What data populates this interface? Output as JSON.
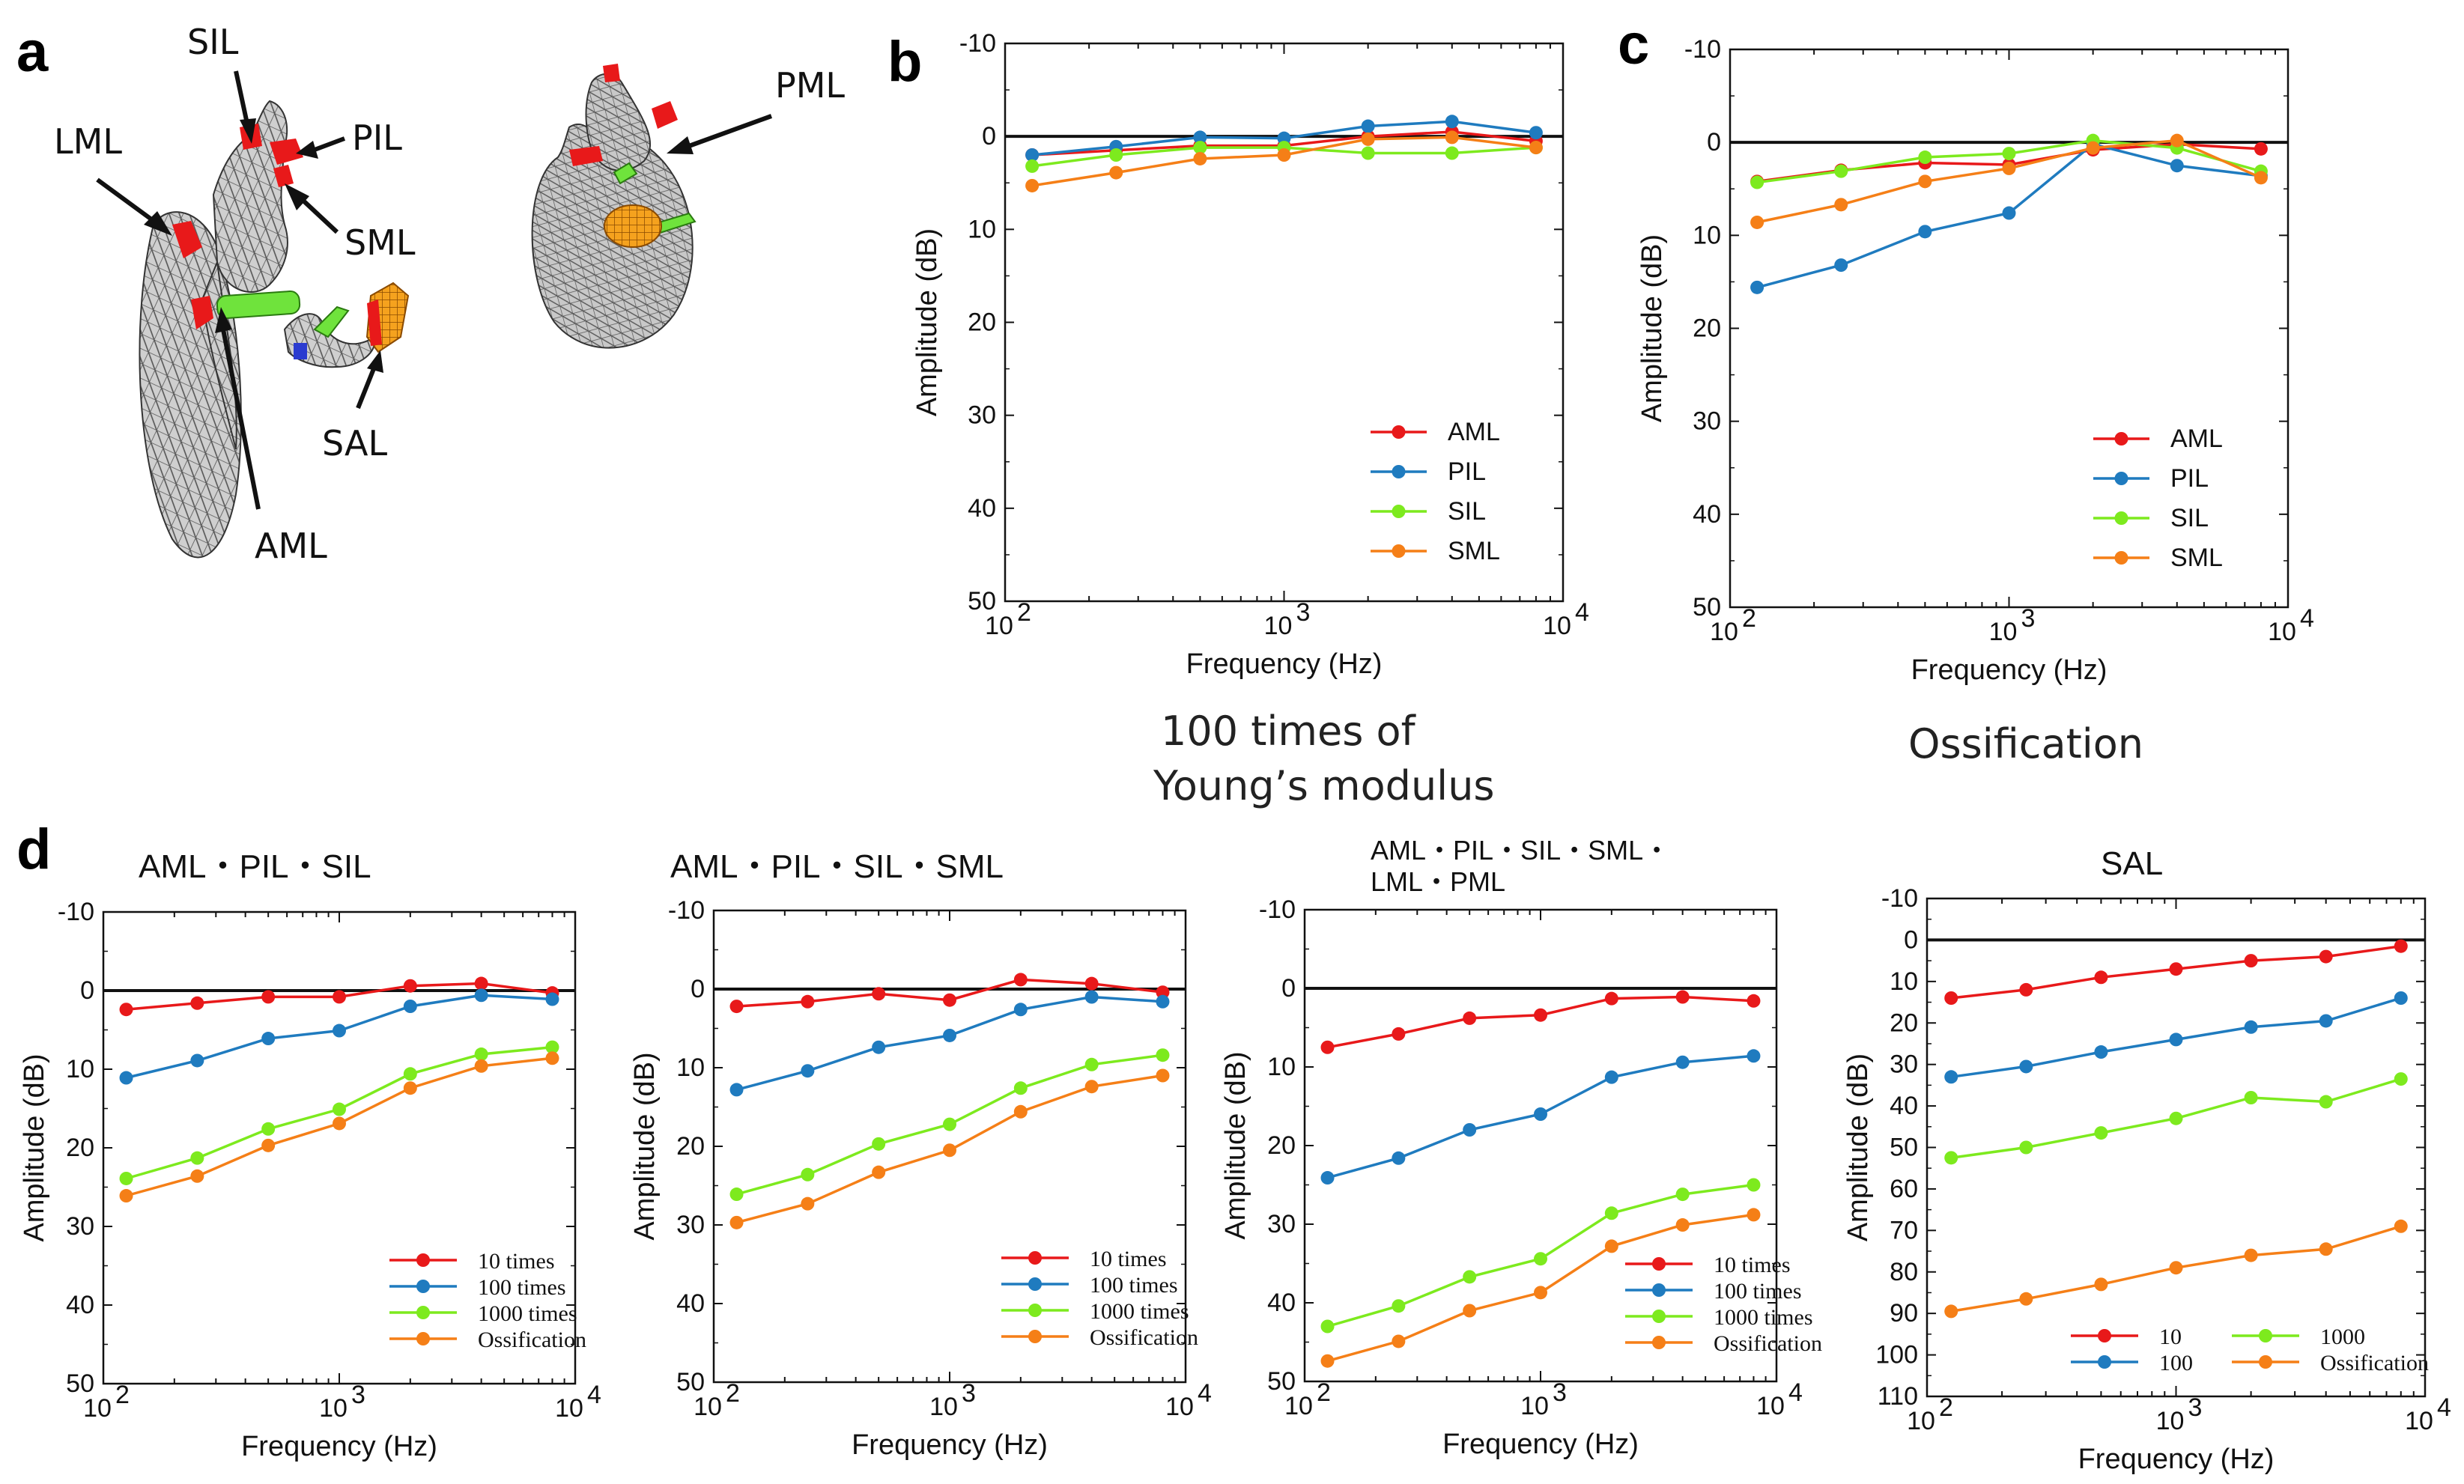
{
  "panel_letters": {
    "a": "a",
    "b": "b",
    "c": "c",
    "d": "d"
  },
  "callouts": {
    "sil": "SIL",
    "pil": "PIL",
    "lml": "LML",
    "sml": "SML",
    "sal": "SAL",
    "aml": "AML",
    "pml": "PML"
  },
  "captions": {
    "young_line1": "100 times of",
    "young_line2": "Young’s modulus",
    "ossification": "Ossification"
  },
  "colors": {
    "red": "#e8191a",
    "blue": "#1f7bbf",
    "green": "#7dea1e",
    "orange": "#f57f17",
    "mesh": "#cfcfcf"
  },
  "axis_text": {
    "xlabel": "Frequency (Hz)",
    "ylabel": "Amplitude (dB)",
    "xticks": [
      "10",
      "2",
      "10",
      "3",
      "10",
      "4"
    ]
  },
  "chart_data": [
    {
      "id": "b",
      "type": "line",
      "title": "",
      "xlabel": "Frequency (Hz)",
      "ylabel": "Amplitude (dB)",
      "xscale": "log",
      "xlim": [
        100,
        10000
      ],
      "ylim": [
        -10,
        50
      ],
      "yinverted": true,
      "yticks": [
        "-10",
        "0",
        "10",
        "20",
        "30",
        "40",
        "50"
      ],
      "x": [
        125,
        250,
        500,
        1000,
        2000,
        4000,
        8000
      ],
      "legend_position": "bottom-right",
      "series": [
        {
          "name": "AML",
          "color": "#e8191a",
          "values": [
            2,
            1.5,
            1,
            1,
            0,
            -0.5,
            0.5
          ]
        },
        {
          "name": "PIL",
          "color": "#1f7bbf",
          "values": [
            2,
            1.1,
            0.1,
            0.2,
            -1.1,
            -1.6,
            -0.4
          ]
        },
        {
          "name": "SIL",
          "color": "#7dea1e",
          "values": [
            3.2,
            2,
            1.2,
            1.2,
            1.8,
            1.8,
            1.2
          ]
        },
        {
          "name": "SML",
          "color": "#f57f17",
          "values": [
            5.3,
            3.9,
            2.4,
            2.0,
            0.3,
            0.1,
            1.2
          ]
        }
      ]
    },
    {
      "id": "c",
      "type": "line",
      "title": "",
      "xlabel": "Frequency (Hz)",
      "ylabel": "Amplitude (dB)",
      "xscale": "log",
      "xlim": [
        100,
        10000
      ],
      "ylim": [
        -10,
        50
      ],
      "yinverted": true,
      "yticks": [
        "-10",
        "0",
        "10",
        "20",
        "30",
        "40",
        "50"
      ],
      "x": [
        125,
        250,
        500,
        1000,
        2000,
        4000,
        8000
      ],
      "legend_position": "bottom-right",
      "series": [
        {
          "name": "AML",
          "color": "#e8191a",
          "values": [
            4.2,
            3.0,
            2.2,
            2.4,
            0.8,
            0.2,
            0.7
          ]
        },
        {
          "name": "PIL",
          "color": "#1f7bbf",
          "values": [
            15.6,
            13.2,
            9.6,
            7.6,
            0.2,
            2.5,
            3.6
          ]
        },
        {
          "name": "SIL",
          "color": "#7dea1e",
          "values": [
            4.3,
            3.1,
            1.6,
            1.2,
            -0.2,
            0.6,
            3.1
          ]
        },
        {
          "name": "SML",
          "color": "#f57f17",
          "values": [
            8.6,
            6.7,
            4.2,
            2.8,
            0.6,
            -0.2,
            3.8
          ]
        }
      ]
    },
    {
      "id": "d1",
      "type": "line",
      "title": "AML・PIL・SIL",
      "xlabel": "Frequency (Hz)",
      "ylabel": "Amplitude (dB)",
      "xscale": "log",
      "xlim": [
        100,
        10000
      ],
      "ylim": [
        -10,
        50
      ],
      "yinverted": true,
      "yticks": [
        "-10",
        "0",
        "10",
        "20",
        "30",
        "40",
        "50"
      ],
      "x": [
        125,
        250,
        500,
        1000,
        2000,
        4000,
        8000
      ],
      "legend_position": "bottom-right",
      "series": [
        {
          "name": "10 times",
          "color": "#e8191a",
          "values": [
            2.4,
            1.6,
            0.8,
            0.8,
            -0.6,
            -0.9,
            0.3
          ]
        },
        {
          "name": "100 times",
          "color": "#1f7bbf",
          "values": [
            11.1,
            8.9,
            6.1,
            5.1,
            2.0,
            0.6,
            1.1
          ]
        },
        {
          "name": "1000 times",
          "color": "#7dea1e",
          "values": [
            23.9,
            21.3,
            17.6,
            15.1,
            10.6,
            8.1,
            7.2
          ]
        },
        {
          "name": "Ossification",
          "color": "#f57f17",
          "values": [
            26.1,
            23.6,
            19.7,
            16.9,
            12.4,
            9.6,
            8.6
          ]
        }
      ]
    },
    {
      "id": "d2",
      "type": "line",
      "title": "AML・PIL・SIL・SML",
      "xlabel": "Frequency (Hz)",
      "ylabel": "Amplitude (dB)",
      "xscale": "log",
      "xlim": [
        100,
        10000
      ],
      "ylim": [
        -10,
        50
      ],
      "yinverted": true,
      "yticks": [
        "-10",
        "0",
        "10",
        "20",
        "30",
        "40",
        "50"
      ],
      "x": [
        125,
        250,
        500,
        1000,
        2000,
        4000,
        8000
      ],
      "legend_position": "bottom-right",
      "series": [
        {
          "name": "10 times",
          "color": "#e8191a",
          "values": [
            2.2,
            1.6,
            0.6,
            1.4,
            -1.2,
            -0.7,
            0.4
          ]
        },
        {
          "name": "100 times",
          "color": "#1f7bbf",
          "values": [
            12.8,
            10.4,
            7.4,
            5.9,
            2.6,
            1.0,
            1.6
          ]
        },
        {
          "name": "1000 times",
          "color": "#7dea1e",
          "values": [
            26.1,
            23.6,
            19.7,
            17.2,
            12.6,
            9.6,
            8.4
          ]
        },
        {
          "name": "Ossification",
          "color": "#f57f17",
          "values": [
            29.7,
            27.3,
            23.3,
            20.5,
            15.6,
            12.4,
            11.0
          ]
        }
      ]
    },
    {
      "id": "d3",
      "type": "line",
      "title": "AML・PIL・SIL・SML・\nLML・PML",
      "title_line1": "AML・PIL・SIL・SML・",
      "title_line2": "LML・PML",
      "xlabel": "Frequency (Hz)",
      "ylabel": "Amplitude (dB)",
      "xscale": "log",
      "xlim": [
        100,
        10000
      ],
      "ylim": [
        -10,
        50
      ],
      "yinverted": true,
      "yticks": [
        "-10",
        "0",
        "10",
        "20",
        "30",
        "40",
        "50"
      ],
      "x": [
        125,
        250,
        500,
        1000,
        2000,
        4000,
        8000
      ],
      "legend_position": "bottom-right",
      "series": [
        {
          "name": "10 times",
          "color": "#e8191a",
          "values": [
            7.5,
            5.8,
            3.8,
            3.4,
            1.3,
            1.1,
            1.6
          ]
        },
        {
          "name": "100 times",
          "color": "#1f7bbf",
          "values": [
            24.1,
            21.6,
            18.0,
            16.0,
            11.3,
            9.4,
            8.6
          ]
        },
        {
          "name": "1000 times",
          "color": "#7dea1e",
          "values": [
            43.0,
            40.4,
            36.7,
            34.4,
            28.6,
            26.2,
            25.0
          ]
        },
        {
          "name": "Ossification",
          "color": "#f57f17",
          "values": [
            47.4,
            44.9,
            41.0,
            38.7,
            32.8,
            30.1,
            28.8
          ]
        }
      ]
    },
    {
      "id": "d4",
      "type": "line",
      "title": "SAL",
      "xlabel": "Frequency (Hz)",
      "ylabel": "Amplitude (dB)",
      "xscale": "log",
      "xlim": [
        100,
        10000
      ],
      "ylim": [
        -10,
        110
      ],
      "yinverted": true,
      "yticks": [
        "-10",
        "0",
        "10",
        "20",
        "30",
        "40",
        "50",
        "60",
        "70",
        "80",
        "90",
        "100",
        "110"
      ],
      "x": [
        125,
        250,
        500,
        1000,
        2000,
        4000,
        8000
      ],
      "legend_position": "bottom-right",
      "series": [
        {
          "name": "10",
          "color": "#e8191a",
          "values": [
            14,
            12,
            9,
            7,
            5,
            4,
            1.5
          ]
        },
        {
          "name": "100",
          "color": "#1f7bbf",
          "values": [
            33,
            30.5,
            27,
            24,
            21,
            19.5,
            14
          ]
        },
        {
          "name": "1000",
          "color": "#7dea1e",
          "values": [
            52.5,
            50,
            46.5,
            43,
            38,
            39,
            33.5
          ]
        },
        {
          "name": "Ossification",
          "color": "#f57f17",
          "values": [
            89.5,
            86.5,
            83,
            79,
            76,
            74.5,
            69
          ]
        }
      ]
    }
  ]
}
